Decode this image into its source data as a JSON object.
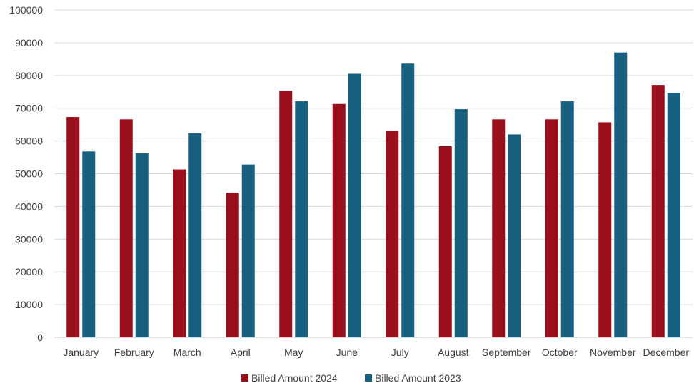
{
  "chart_data": {
    "type": "bar",
    "title": "",
    "xlabel": "",
    "ylabel": "",
    "ylim": [
      0,
      100000
    ],
    "yticks": [
      0,
      10000,
      20000,
      30000,
      40000,
      50000,
      60000,
      70000,
      80000,
      90000,
      100000
    ],
    "grid": true,
    "legend_position": "bottom",
    "categories": [
      "January",
      "February",
      "March",
      "April",
      "May",
      "June",
      "July",
      "August",
      "September",
      "October",
      "November",
      "December"
    ],
    "series": [
      {
        "name": "Billed Amount 2024",
        "color": "#9b0e1b",
        "values": [
          67300,
          66600,
          51300,
          44200,
          75300,
          71300,
          63000,
          58400,
          66600,
          66600,
          65700,
          77100
        ]
      },
      {
        "name": "Billed Amount 2023",
        "color": "#17607f",
        "values": [
          56800,
          56200,
          62300,
          52800,
          72100,
          80500,
          83600,
          69700,
          62000,
          72100,
          87000,
          74700
        ]
      }
    ]
  }
}
